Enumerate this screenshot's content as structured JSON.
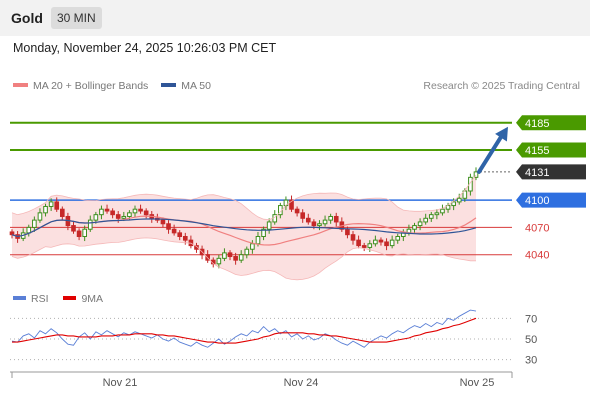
{
  "header": {
    "symbol": "Gold",
    "timeframe": "30 MIN",
    "datetime": "Monday, November 24, 2025 10:26:03 PM CET"
  },
  "legend": {
    "items": [
      {
        "label": "MA 20 + Bollinger Bands",
        "color": "#f08080"
      },
      {
        "label": "MA 50",
        "color": "#2f5597"
      }
    ],
    "credit": "Research © 2025 Trading Central"
  },
  "rsi_legend": {
    "items": [
      {
        "label": "RSI",
        "color": "#5a7fd6"
      },
      {
        "label": "9MA",
        "color": "#e00000"
      }
    ]
  },
  "chart_data": [
    {
      "type": "candlestick",
      "instrument": "Gold",
      "timeframe": "30 MIN",
      "x_ticks": [
        "Nov 21",
        "Nov 24",
        "Nov 25"
      ],
      "ylim": [
        4010,
        4210
      ],
      "levels": [
        {
          "value": 4185,
          "label": "4185",
          "color": "#4a9a00",
          "kind": "resistance"
        },
        {
          "value": 4155,
          "label": "4155",
          "color": "#4a9a00",
          "kind": "resistance"
        },
        {
          "value": 4131,
          "label": "4131",
          "color": "#333333",
          "kind": "last"
        },
        {
          "value": 4100,
          "label": "4100",
          "color": "#2e6fe0",
          "kind": "pivot"
        },
        {
          "value": 4070,
          "label": "4070",
          "color": "#d83a3a",
          "kind": "support"
        },
        {
          "value": 4040,
          "label": "4040",
          "color": "#d83a3a",
          "kind": "support"
        }
      ],
      "closes": [
        4062,
        4058,
        4064,
        4070,
        4078,
        4086,
        4093,
        4098,
        4090,
        4082,
        4072,
        4066,
        4060,
        4068,
        4078,
        4084,
        4090,
        4088,
        4084,
        4080,
        4082,
        4086,
        4090,
        4088,
        4084,
        4080,
        4078,
        4074,
        4068,
        4064,
        4060,
        4056,
        4050,
        4046,
        4040,
        4034,
        4030,
        4036,
        4042,
        4038,
        4034,
        4040,
        4046,
        4052,
        4060,
        4068,
        4076,
        4084,
        4094,
        4100,
        4090,
        4086,
        4080,
        4076,
        4072,
        4074,
        4078,
        4082,
        4076,
        4068,
        4062,
        4056,
        4050,
        4048,
        4052,
        4056,
        4054,
        4050,
        4056,
        4060,
        4064,
        4068,
        4072,
        4076,
        4080,
        4084,
        4086,
        4090,
        4094,
        4098,
        4102,
        4110,
        4125,
        4131
      ]
    },
    {
      "type": "line",
      "title": "RSI",
      "series": [
        {
          "name": "RSI",
          "color": "#5a7fd6"
        },
        {
          "name": "9MA",
          "color": "#e00000"
        }
      ],
      "y_ticks": [
        70,
        50,
        30
      ],
      "ylim": [
        20,
        80
      ],
      "rsi": [
        48,
        47,
        53,
        55,
        51,
        58,
        55,
        60,
        56,
        50,
        45,
        44,
        52,
        56,
        50,
        57,
        54,
        58,
        55,
        52,
        56,
        54,
        57,
        55,
        53,
        51,
        54,
        50,
        48,
        51,
        47,
        45,
        43,
        47,
        44,
        42,
        46,
        50,
        45,
        48,
        52,
        55,
        53,
        58,
        56,
        62,
        57,
        60,
        55,
        58,
        52,
        55,
        50,
        53,
        49,
        51,
        55,
        53,
        49,
        46,
        44,
        48,
        45,
        42,
        47,
        50,
        53,
        51,
        55,
        58,
        56,
        60,
        63,
        61,
        65,
        62,
        66,
        64,
        70,
        68,
        72,
        75,
        78,
        77
      ],
      "ma9": [
        47,
        47,
        48,
        49,
        50,
        51,
        52,
        53,
        54,
        54,
        53,
        53,
        52,
        52,
        52,
        52,
        53,
        53,
        53,
        54,
        54,
        54,
        55,
        55,
        55,
        55,
        54,
        54,
        53,
        53,
        52,
        51,
        50,
        49,
        48,
        47,
        47,
        46,
        46,
        46,
        46,
        47,
        48,
        49,
        50,
        52,
        53,
        55,
        56,
        56,
        56,
        56,
        56,
        55,
        55,
        54,
        54,
        53,
        53,
        52,
        51,
        50,
        49,
        48,
        47,
        47,
        47,
        47,
        48,
        49,
        50,
        51,
        53,
        54,
        56,
        57,
        58,
        60,
        61,
        63,
        64,
        66,
        68,
        70
      ]
    }
  ]
}
